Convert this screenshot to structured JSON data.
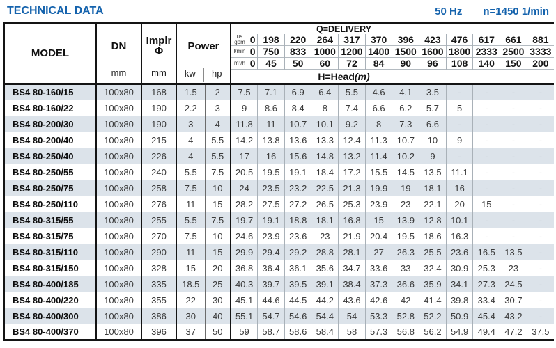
{
  "page": {
    "title": "TECHNICAL DATA",
    "frequency": "50 Hz",
    "speed": "n=1450 1/min"
  },
  "table": {
    "headers": {
      "model": "MODEL",
      "dn": "DN",
      "dn_unit": "mm",
      "impeller": "Implr",
      "impeller_symbol": "Φ",
      "impeller_unit": "mm",
      "power": "Power",
      "power_kw": "kw",
      "power_hp": "hp",
      "delivery_title": "Q=DELIVERY",
      "head_title": "H=Head",
      "head_unit": "(m)"
    },
    "flow_rows": [
      {
        "unit": "us gpm",
        "values": [
          "0",
          "198",
          "220",
          "264",
          "317",
          "370",
          "396",
          "423",
          "476",
          "617",
          "661",
          "881"
        ]
      },
      {
        "unit": "l/min",
        "values": [
          "0",
          "750",
          "833",
          "1000",
          "1200",
          "1400",
          "1500",
          "1600",
          "1800",
          "2333",
          "2500",
          "3333"
        ]
      },
      {
        "unit": "m³/h",
        "values": [
          "0",
          "45",
          "50",
          "60",
          "72",
          "84",
          "90",
          "96",
          "108",
          "140",
          "150",
          "200"
        ]
      }
    ],
    "rows": [
      {
        "model": "BS4 80-160/15",
        "dn": "100x80",
        "impeller": "168",
        "kw": "1.5",
        "hp": "2",
        "heads": [
          "7.5",
          "7.1",
          "6.9",
          "6.4",
          "5.5",
          "4.6",
          "4.1",
          "3.5",
          "-",
          "-",
          "-",
          "-"
        ]
      },
      {
        "model": "BS4 80-160/22",
        "dn": "100x80",
        "impeller": "190",
        "kw": "2.2",
        "hp": "3",
        "heads": [
          "9",
          "8.6",
          "8.4",
          "8",
          "7.4",
          "6.6",
          "6.2",
          "5.7",
          "5",
          "-",
          "-",
          "-"
        ]
      },
      {
        "model": "BS4 80-200/30",
        "dn": "100x80",
        "impeller": "190",
        "kw": "3",
        "hp": "4",
        "heads": [
          "11.8",
          "11",
          "10.7",
          "10.1",
          "9.2",
          "8",
          "7.3",
          "6.6",
          "-",
          "-",
          "-",
          "-"
        ]
      },
      {
        "model": "BS4 80-200/40",
        "dn": "100x80",
        "impeller": "215",
        "kw": "4",
        "hp": "5.5",
        "heads": [
          "14.2",
          "13.8",
          "13.6",
          "13.3",
          "12.4",
          "11.3",
          "10.7",
          "10",
          "9",
          "-",
          "-",
          "-"
        ]
      },
      {
        "model": "BS4 80-250/40",
        "dn": "100x80",
        "impeller": "226",
        "kw": "4",
        "hp": "5.5",
        "heads": [
          "17",
          "16",
          "15.6",
          "14.8",
          "13.2",
          "11.4",
          "10.2",
          "9",
          "-",
          "-",
          "-",
          "-"
        ]
      },
      {
        "model": "BS4 80-250/55",
        "dn": "100x80",
        "impeller": "240",
        "kw": "5.5",
        "hp": "7.5",
        "heads": [
          "20.5",
          "19.5",
          "19.1",
          "18.4",
          "17.2",
          "15.5",
          "14.5",
          "13.5",
          "11.1",
          "-",
          "-",
          "-"
        ]
      },
      {
        "model": "BS4 80-250/75",
        "dn": "100x80",
        "impeller": "258",
        "kw": "7.5",
        "hp": "10",
        "heads": [
          "24",
          "23.5",
          "23.2",
          "22.5",
          "21.3",
          "19.9",
          "19",
          "18.1",
          "16",
          "-",
          "-",
          "-"
        ]
      },
      {
        "model": "BS4 80-250/110",
        "dn": "100x80",
        "impeller": "276",
        "kw": "11",
        "hp": "15",
        "heads": [
          "28.2",
          "27.5",
          "27.2",
          "26.5",
          "25.3",
          "23.9",
          "23",
          "22.1",
          "20",
          "15",
          "-",
          "-"
        ]
      },
      {
        "model": "BS4 80-315/55",
        "dn": "100x80",
        "impeller": "255",
        "kw": "5.5",
        "hp": "7.5",
        "heads": [
          "19.7",
          "19.1",
          "18.8",
          "18.1",
          "16.8",
          "15",
          "13.9",
          "12.8",
          "10.1",
          "-",
          "-",
          "-"
        ]
      },
      {
        "model": "BS4 80-315/75",
        "dn": "100x80",
        "impeller": "270",
        "kw": "7.5",
        "hp": "10",
        "heads": [
          "24.6",
          "23.9",
          "23.6",
          "23",
          "21.9",
          "20.4",
          "19.5",
          "18.6",
          "16.3",
          "-",
          "-",
          "-"
        ]
      },
      {
        "model": "BS4 80-315/110",
        "dn": "100x80",
        "impeller": "290",
        "kw": "11",
        "hp": "15",
        "heads": [
          "29.9",
          "29.4",
          "29.2",
          "28.8",
          "28.1",
          "27",
          "26.3",
          "25.5",
          "23.6",
          "16.5",
          "13.5",
          "-"
        ]
      },
      {
        "model": "BS4 80-315/150",
        "dn": "100x80",
        "impeller": "328",
        "kw": "15",
        "hp": "20",
        "heads": [
          "36.8",
          "36.4",
          "36.1",
          "35.6",
          "34.7",
          "33.6",
          "33",
          "32.4",
          "30.9",
          "25.3",
          "23",
          "-"
        ]
      },
      {
        "model": "BS4 80-400/185",
        "dn": "100x80",
        "impeller": "335",
        "kw": "18.5",
        "hp": "25",
        "heads": [
          "40.3",
          "39.7",
          "39.5",
          "39.1",
          "38.4",
          "37.3",
          "36.6",
          "35.9",
          "34.1",
          "27.3",
          "24.5",
          "-"
        ]
      },
      {
        "model": "BS4 80-400/220",
        "dn": "100x80",
        "impeller": "355",
        "kw": "22",
        "hp": "30",
        "heads": [
          "45.1",
          "44.6",
          "44.5",
          "44.2",
          "43.6",
          "42.6",
          "42",
          "41.4",
          "39.8",
          "33.4",
          "30.7",
          "-"
        ]
      },
      {
        "model": "BS4 80-400/300",
        "dn": "100x80",
        "impeller": "386",
        "kw": "30",
        "hp": "40",
        "heads": [
          "55.1",
          "54.7",
          "54.6",
          "54.4",
          "54",
          "53.3",
          "52.8",
          "52.2",
          "50.9",
          "45.4",
          "43.2",
          "-"
        ]
      },
      {
        "model": "BS4 80-400/370",
        "dn": "100x80",
        "impeller": "396",
        "kw": "37",
        "hp": "50",
        "heads": [
          "59",
          "58.7",
          "58.6",
          "58.4",
          "58",
          "57.3",
          "56.8",
          "56.2",
          "54.9",
          "49.4",
          "47.2",
          "37.5"
        ]
      }
    ]
  }
}
